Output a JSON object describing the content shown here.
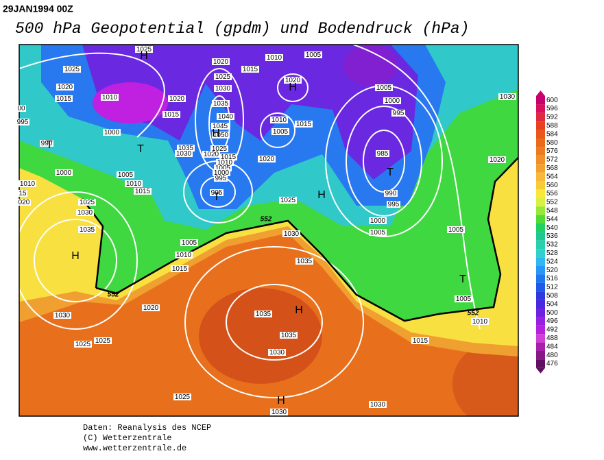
{
  "header": {
    "date": "29JAN1994 00Z",
    "title": "500 hPa Geopotential (gpdm) und Bodendruck (hPa)"
  },
  "map": {
    "isobar_labels": [
      "1025",
      "1025",
      "1020",
      "1015",
      "1010",
      "1020",
      "1015",
      "1000",
      "995",
      "00",
      "990",
      "1005",
      "1010",
      "1015",
      "1000",
      "1010",
      "15",
      "020",
      "1025",
      "1030",
      "1035",
      "1035",
      "1030",
      "1025",
      "1020",
      "1015",
      "1010",
      "1005",
      "1000",
      "995",
      "995",
      "1020",
      "1025",
      "1030",
      "1035",
      "1040",
      "1045",
      "1050",
      "1015",
      "1010",
      "1005",
      "1020",
      "1010",
      "1005",
      "1015",
      "1020",
      "1025",
      "1030",
      "1035",
      "1005",
      "1000",
      "995",
      "985",
      "990",
      "995",
      "1000",
      "1005",
      "1030",
      "1020",
      "1005",
      "1005",
      "1010",
      "1015",
      "1005",
      "1010",
      "1015",
      "1020",
      "1030",
      "1025",
      "1025",
      "1035",
      "1035",
      "1030",
      "1025",
      "1030",
      "1030"
    ],
    "contour_labels": [
      "552",
      "552",
      "552"
    ],
    "pressure_centers": [
      "H",
      "H",
      "H",
      "T",
      "T",
      "T",
      "T",
      "H",
      "H",
      "H",
      "T",
      "H"
    ]
  },
  "colorbar": {
    "levels": [
      600,
      596,
      592,
      588,
      584,
      580,
      576,
      572,
      568,
      564,
      560,
      556,
      552,
      548,
      544,
      540,
      536,
      532,
      528,
      524,
      520,
      516,
      512,
      508,
      504,
      500,
      496,
      492,
      488,
      484,
      480,
      476
    ],
    "colors": [
      "#c8006e",
      "#d8105a",
      "#e02840",
      "#e84020",
      "#e85818",
      "#e86a1a",
      "#ec7c20",
      "#f09028",
      "#f4a030",
      "#f8b838",
      "#f8cc38",
      "#f8e838",
      "#d8f040",
      "#98e838",
      "#50dc38",
      "#20d060",
      "#20c890",
      "#28d0b0",
      "#30d0d0",
      "#30b8f0",
      "#2898f8",
      "#2078f0",
      "#2058e8",
      "#3038e0",
      "#4828e0",
      "#7020e0",
      "#9820e0",
      "#b820e0",
      "#d040d8",
      "#a820a8",
      "#881888",
      "#601060"
    ]
  },
  "footer": {
    "lines": [
      "Daten: Reanalysis des NCEP",
      "(C) Wetterzentrale",
      "www.wetterzentrale.de"
    ]
  }
}
